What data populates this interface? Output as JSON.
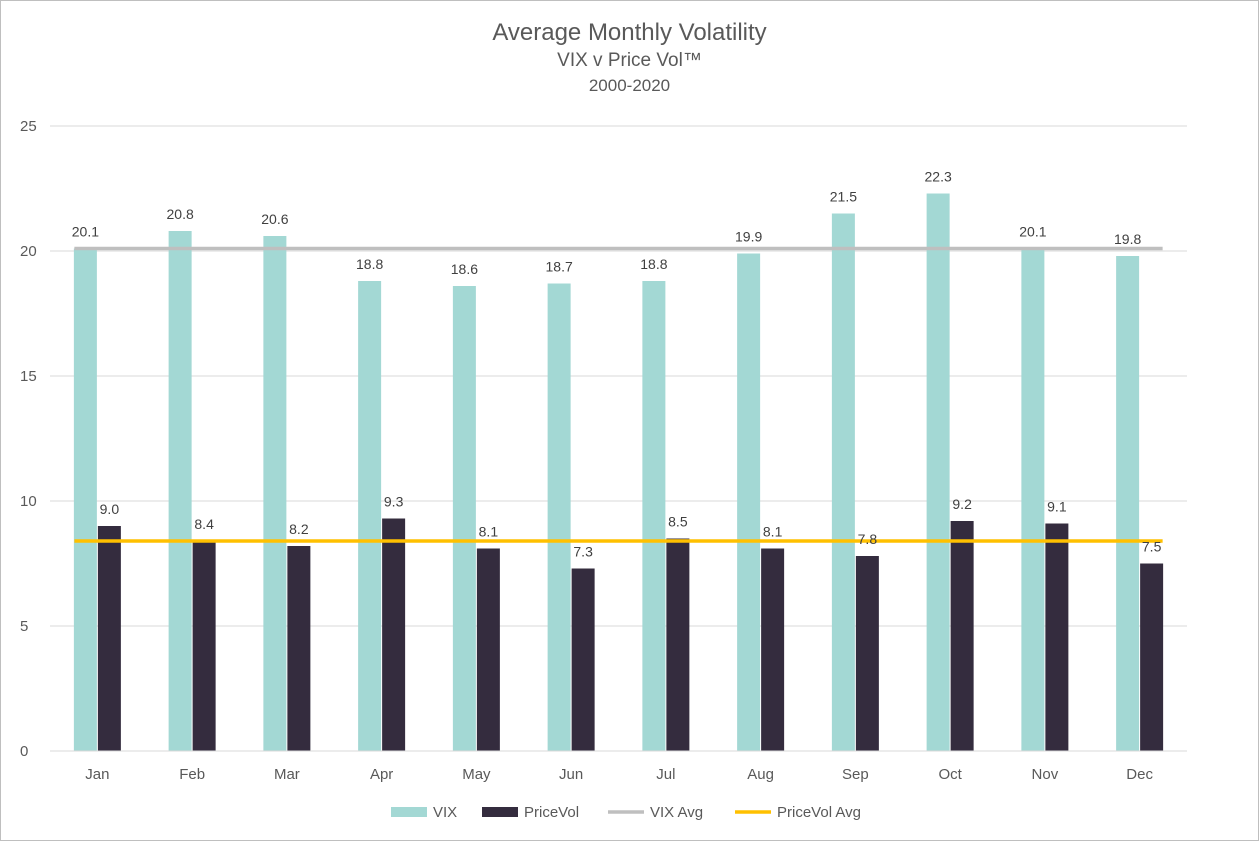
{
  "chart_data": {
    "type": "bar",
    "title": "Average Monthly Volatility",
    "subtitle": "VIX v Price Vol™",
    "subtitle2": "2000-2020",
    "categories": [
      "Jan",
      "Feb",
      "Mar",
      "Apr",
      "May",
      "Jun",
      "Jul",
      "Aug",
      "Sep",
      "Oct",
      "Nov",
      "Dec"
    ],
    "series": [
      {
        "name": "VIX",
        "values": [
          20.1,
          20.8,
          20.6,
          18.8,
          18.6,
          18.7,
          18.8,
          19.9,
          21.5,
          22.3,
          20.1,
          19.8
        ],
        "color": "#a3d8d4"
      },
      {
        "name": "PriceVol",
        "values": [
          9.0,
          8.4,
          8.2,
          9.3,
          8.1,
          7.3,
          8.5,
          8.1,
          7.8,
          9.2,
          9.1,
          7.5
        ],
        "color": "#342c3e"
      }
    ],
    "lines": [
      {
        "name": "VIX Avg",
        "value": 20.1,
        "color": "#bfbfbf"
      },
      {
        "name": "PriceVol Avg",
        "value": 8.4,
        "color": "#ffc000"
      }
    ],
    "ylim": [
      0,
      25
    ],
    "yticks": [
      "0",
      "5",
      "10",
      "15",
      "20",
      "25"
    ],
    "grid": true,
    "legend": "bottom"
  }
}
